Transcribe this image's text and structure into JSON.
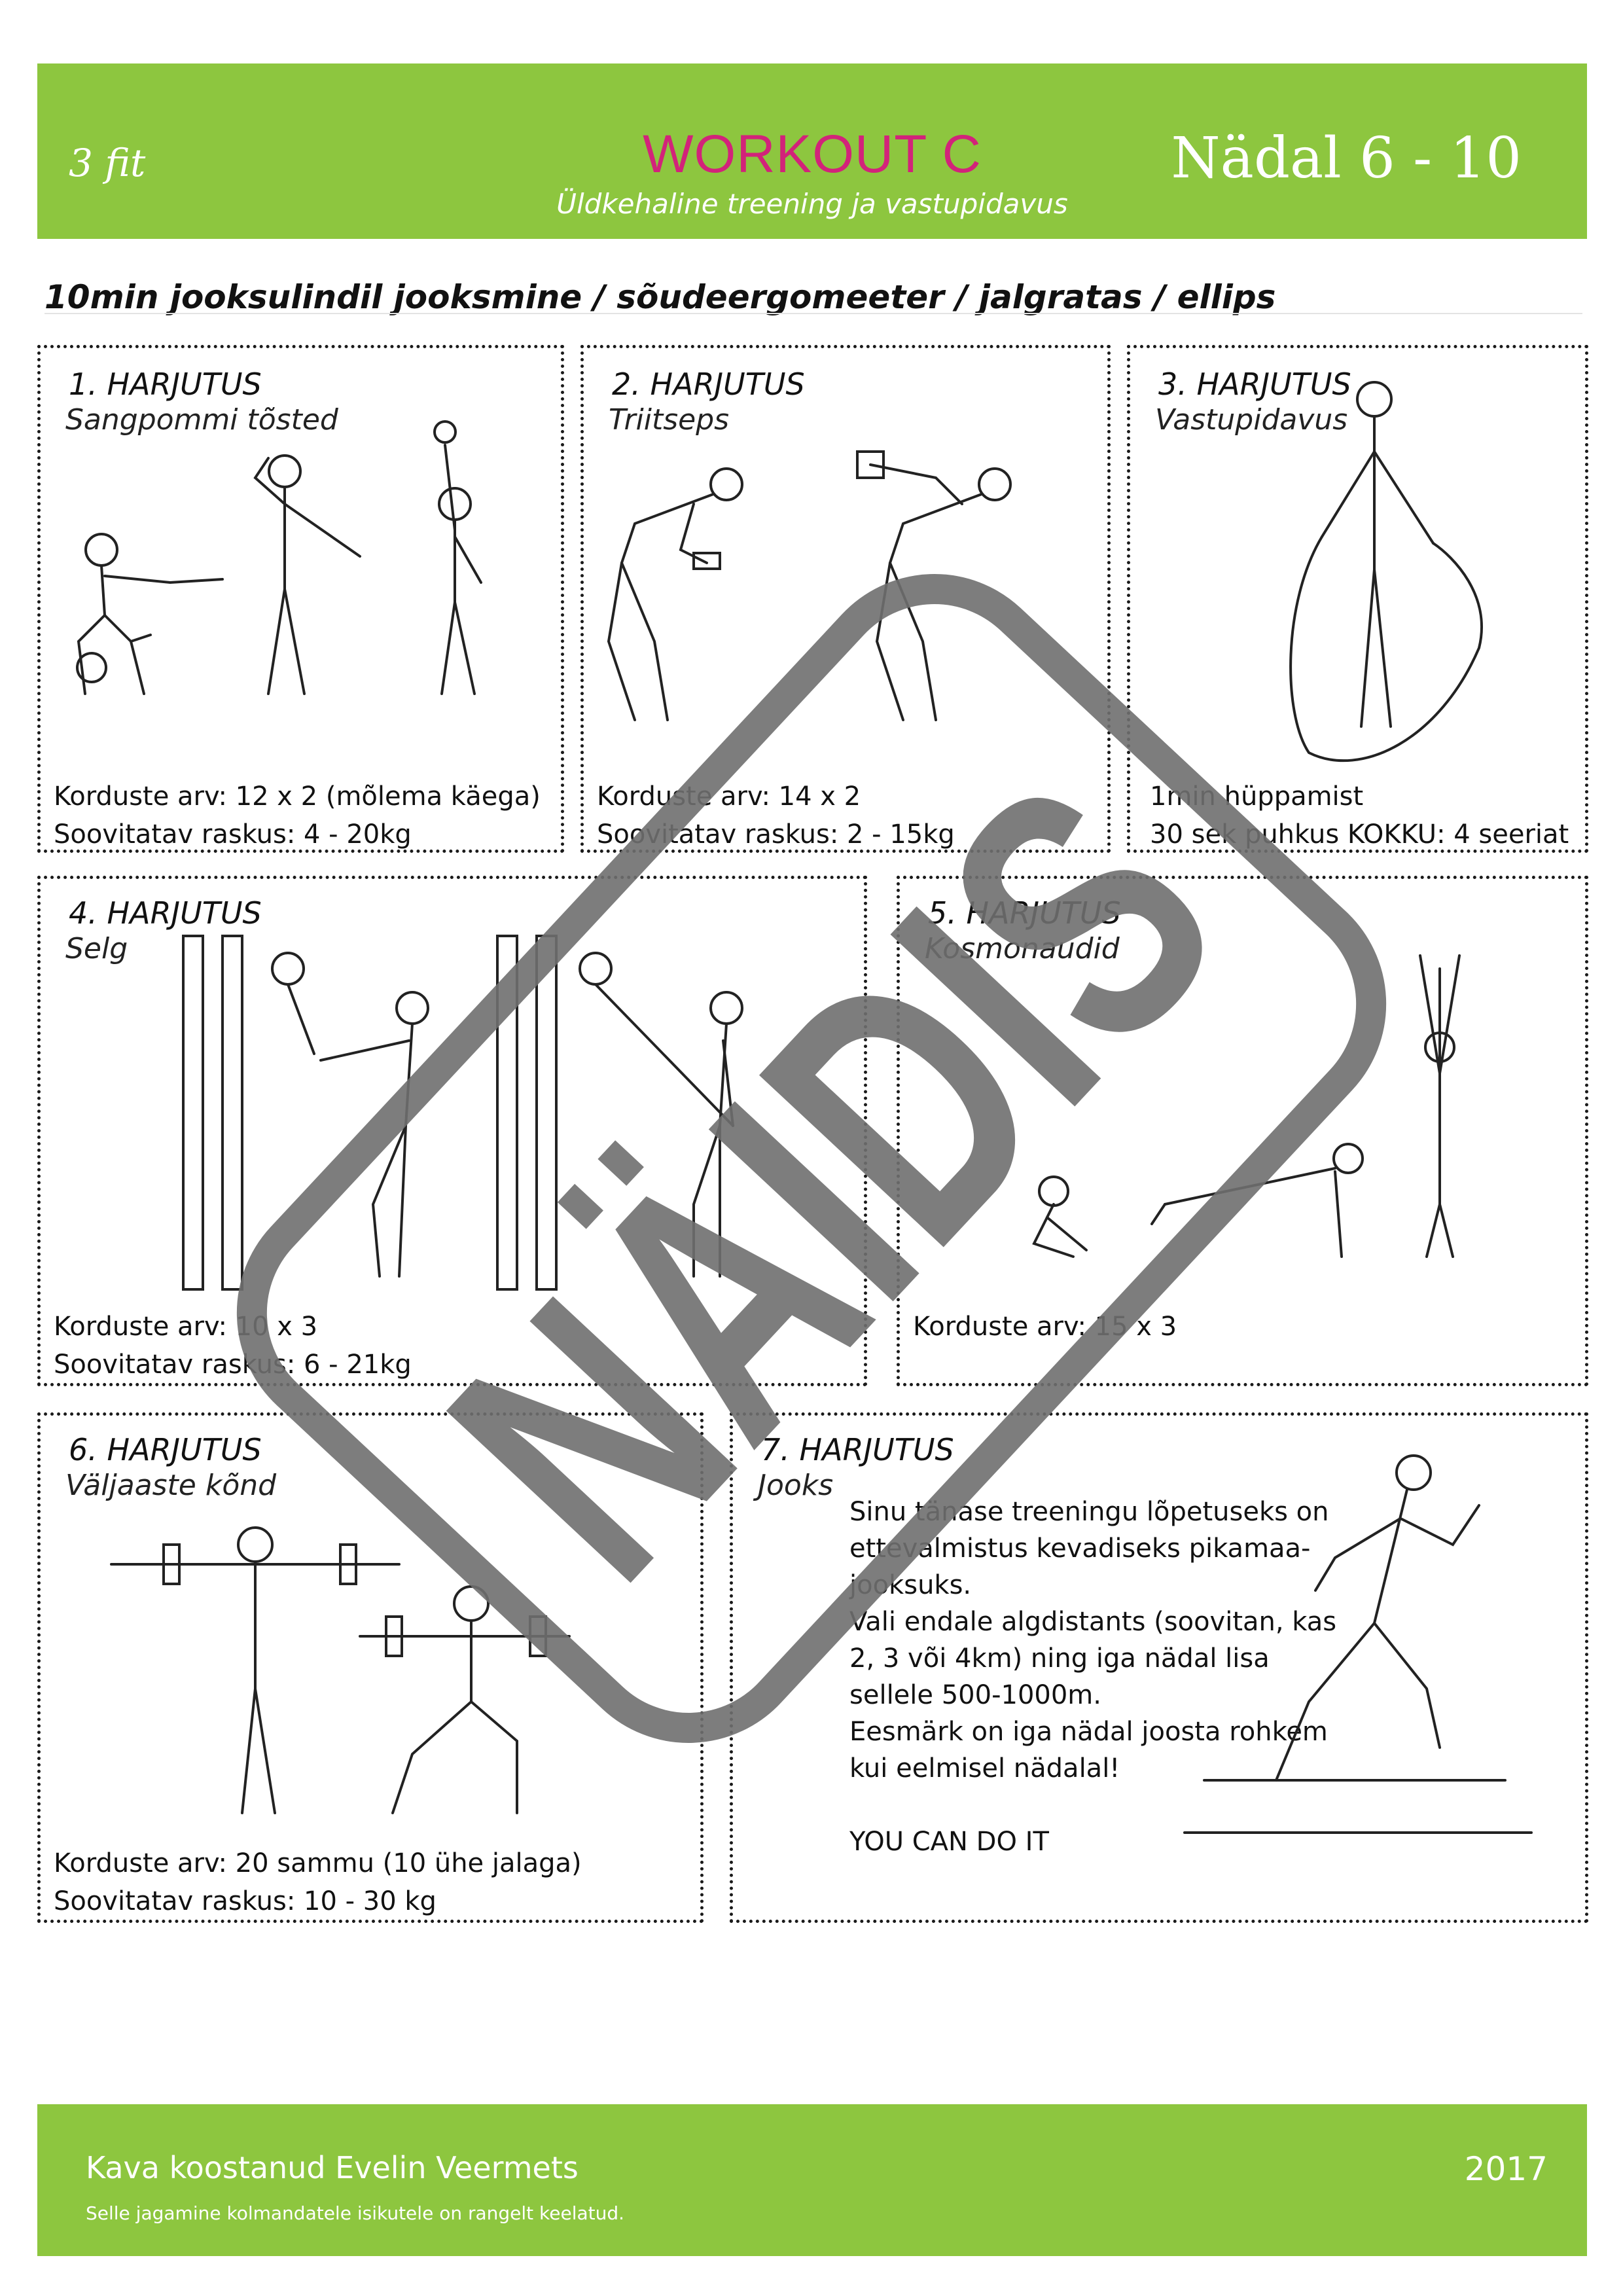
{
  "header": {
    "logo": "3 fit",
    "title": "WORKOUT C",
    "subtitle": "Üldkehaline treening ja vastupidavus",
    "week": "Nädal 6 - 10"
  },
  "warmup": "10min jooksulindil jooksmine / sõudeergomeeter / jalgratas / ellips",
  "exercises": [
    {
      "number": "1. HARJUTUS",
      "name": "Sangpommi tõsted",
      "line1": "Korduste arv: 12 x 2 (mõlema käega)",
      "line2": "Soovitatav raskus: 4 - 20kg"
    },
    {
      "number": "2. HARJUTUS",
      "name": "Triitseps",
      "line1": "Korduste arv: 14 x 2",
      "line2": "Soovitatav raskus: 2 - 15kg"
    },
    {
      "number": "3. HARJUTUS",
      "name": "Vastupidavus",
      "line1": "1min hüppamist",
      "line2": "30 sek puhkus KOKKU: 4 seeriat"
    },
    {
      "number": "4. HARJUTUS",
      "name": "Selg",
      "line1": "Korduste arv: 10 x 3",
      "line2": "Soovitatav raskus: 6 - 21kg"
    },
    {
      "number": "5. HARJUTUS",
      "name": "Kosmonaudid",
      "line1": "Korduste arv: 15 x 3",
      "line2": ""
    },
    {
      "number": "6. HARJUTUS",
      "name": "Väljaaste kõnd",
      "line1": "Korduste arv: 20 sammu (10 ühe jalaga)",
      "line2": "Soovitatav raskus: 10 - 30 kg"
    },
    {
      "number": "7. HARJUTUS",
      "name": "Jooks",
      "line1": "",
      "line2": ""
    }
  ],
  "jog_text": {
    "p1": "Sinu tänase treeningu lõpetuseks on ettevalmistus kevadiseks pikamaa-jooksuks.",
    "p2": "Vali endale algdistants (soovitan, kas 2, 3 või 4km) ning iga nädal lisa sellele 500-1000m.",
    "p3": "Eesmärk on iga nädal joosta rohkem kui eelmisel nädalal!",
    "p4": "YOU CAN DO IT"
  },
  "footer": {
    "author": "Kava koostanud Evelin Veermets",
    "note": "Selle jagamine kolmandatele isikutele on rangelt keelatud.",
    "year": "2017"
  },
  "watermark": "NÄIDIS",
  "colors": {
    "brand_green": "#8dc63f",
    "title_pink": "#d2237a",
    "watermark_gray": "#6f6f6f"
  }
}
